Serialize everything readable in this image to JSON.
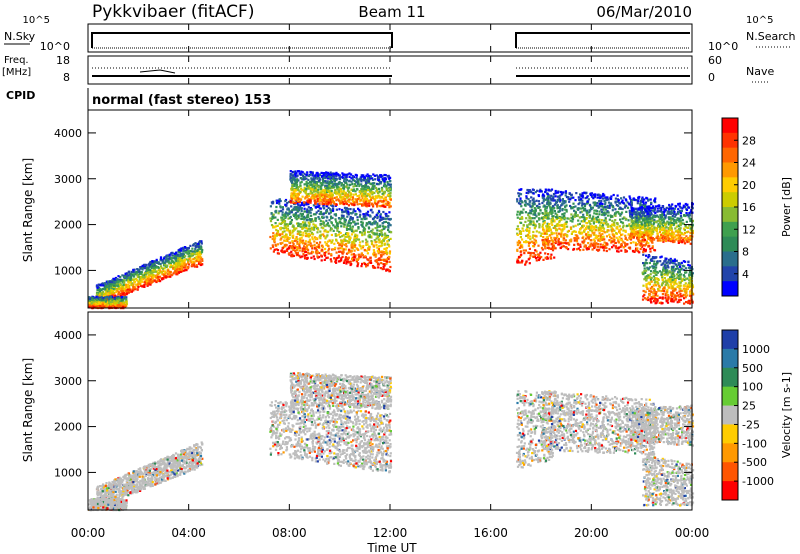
{
  "header": {
    "station": "Pykkvibaer (fitACF)",
    "beam": "Beam 11",
    "date": "06/Mar/2010"
  },
  "top_panels": {
    "nsky_label": "N.Sky",
    "nsearch_label": "N.Search",
    "nsky_ticks": [
      "10^5",
      "10^0"
    ],
    "nsearch_ticks": [
      "10^5",
      "10^0"
    ],
    "freq_label": "Freq.",
    "freq_unit": "[MHz]",
    "freq_ticks": [
      "18",
      "8"
    ],
    "nave_label": "Nave",
    "nave_ticks": [
      "60",
      "0"
    ],
    "cpid_label": "CPID",
    "cpid_value": "normal (fast stereo) 153"
  },
  "chart_data": [
    {
      "type": "heatmap",
      "title": "",
      "quantity": "Power",
      "unit": "[dB]",
      "xlabel": "",
      "ylabel": "Slant Range [km]",
      "xlim": [
        "00:00",
        "24:00"
      ],
      "ylim": [
        180,
        4500
      ],
      "yticks": [
        "1000",
        "2000",
        "3000",
        "4000"
      ],
      "colorbar": {
        "label": "Power [dB]",
        "ticks": [
          "28",
          "24",
          "20",
          "16",
          "12",
          "8",
          "4"
        ],
        "colors": [
          "#ff0000",
          "#ff3300",
          "#ff6600",
          "#ff9900",
          "#ffcc00",
          "#cccc00",
          "#88bb33",
          "#3fa04f",
          "#2e8b57",
          "#2a6e8c",
          "#2244aa",
          "#0000ff"
        ]
      },
      "data_gap": [
        "12:00",
        "17:00"
      ]
    },
    {
      "type": "heatmap",
      "title": "",
      "quantity": "Velocity",
      "unit": "[m s-1]",
      "xlabel": "Time UT",
      "ylabel": "Slant Range [km]",
      "xlim": [
        "00:00",
        "24:00"
      ],
      "ylim": [
        180,
        4500
      ],
      "xticks": [
        "00:00",
        "04:00",
        "08:00",
        "12:00",
        "16:00",
        "20:00",
        "00:00"
      ],
      "yticks": [
        "1000",
        "2000",
        "3000",
        "4000"
      ],
      "colorbar": {
        "label": "Velocity [m s-1]",
        "ticks": [
          "1000",
          "500",
          "100",
          "25",
          "-25",
          "-100",
          "-500",
          "-1000"
        ],
        "colors": [
          "#1f3fa8",
          "#2a7aa8",
          "#2e8b57",
          "#66cc33",
          "#bdbdbd",
          "#ffcc00",
          "#ff9900",
          "#ff5500",
          "#ff0000"
        ]
      },
      "data_gap": [
        "12:00",
        "17:00"
      ]
    }
  ]
}
